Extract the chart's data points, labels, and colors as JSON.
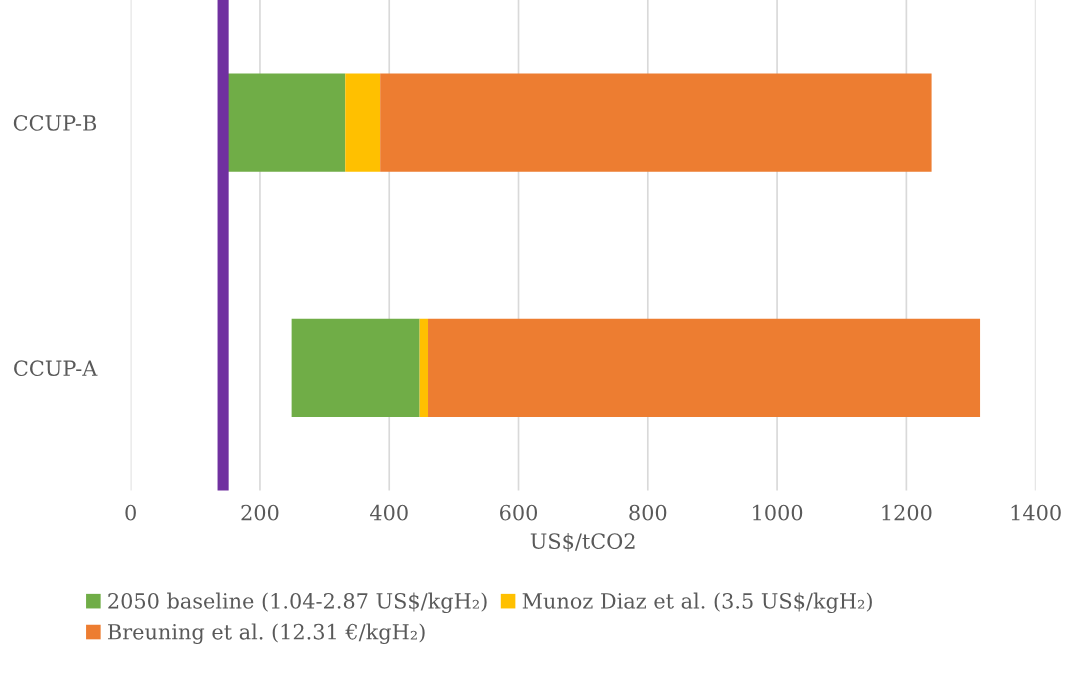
{
  "chart_data": {
    "type": "bar",
    "orientation": "horizontal",
    "categories": [
      "CCUP-B",
      "CCUP-A"
    ],
    "series": [
      {
        "name": "2050 baseline (1.04-2.87 US$/kgH₂)",
        "color": "#70ad47",
        "base": [
          149,
          249
        ],
        "values": [
          183,
          198
        ]
      },
      {
        "name": "Munoz Diaz et al. (3.5 US$/kgH₂)",
        "color": "#ffc000",
        "base": [
          332,
          447
        ],
        "values": [
          54,
          13
        ]
      },
      {
        "name": "Breuning et al. (12.31 €/kgH₂)",
        "color": "#ed7d31",
        "base": [
          386,
          460
        ],
        "values": [
          853,
          854
        ]
      }
    ],
    "xlabel": "US$/tCO2",
    "xlim": [
      0,
      1400
    ],
    "xticks": [
      0,
      200,
      400,
      600,
      800,
      1000,
      1200,
      1400
    ],
    "ref_lines": [
      {
        "axis": "x",
        "value": 143,
        "color": "#7030a0"
      }
    ],
    "grid": "x",
    "legend": "bottom"
  }
}
